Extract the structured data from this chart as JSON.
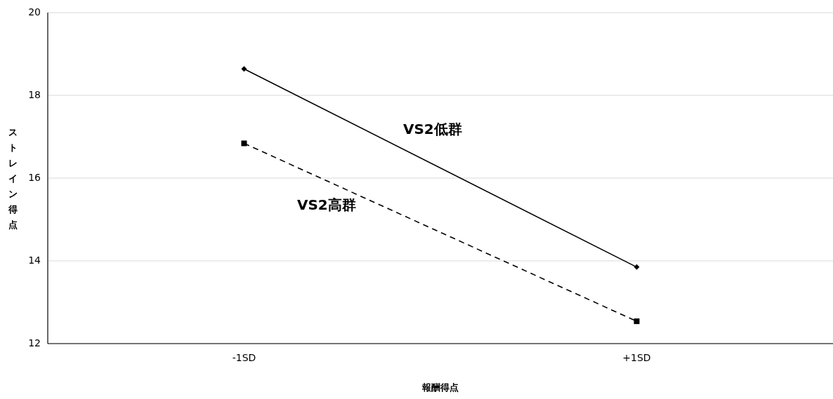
{
  "chart_data": {
    "type": "line",
    "xlabel": "報酬得点",
    "ylabel": "ストレイン得点",
    "categories": [
      "-1SD",
      "+1SD"
    ],
    "series": [
      {
        "name": "VS2低群",
        "color": "#000000",
        "values": [
          18.64,
          13.85
        ],
        "marker": "diamond",
        "line_style": "solid"
      },
      {
        "name": "VS2高群",
        "color": "#000000",
        "values": [
          16.84,
          12.54
        ],
        "marker": "square",
        "line_style": "dashed"
      }
    ],
    "ylim": [
      12,
      20
    ],
    "yticks": [
      12,
      14,
      16,
      18,
      20
    ],
    "grid": "y"
  }
}
